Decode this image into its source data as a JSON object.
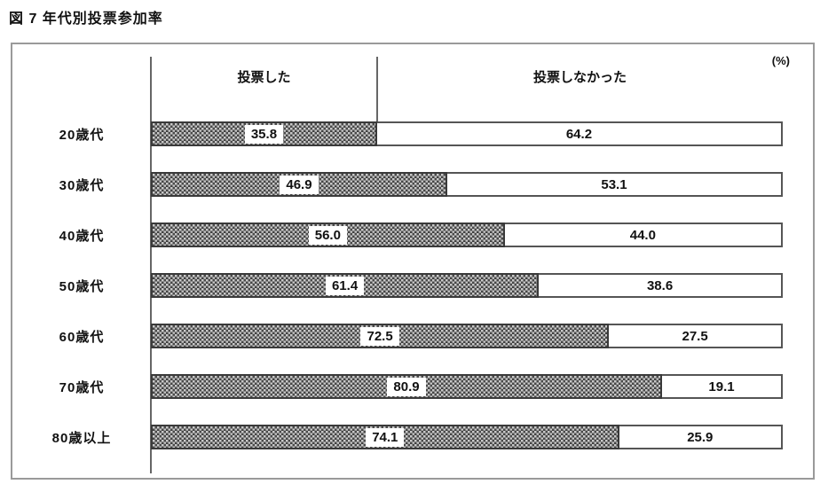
{
  "page": {
    "title": "図 7 年代別投票参加率"
  },
  "header": {
    "voted_label": "投票した",
    "not_voted_label": "投票しなかった",
    "unit": "(%)"
  },
  "chart_data": {
    "type": "bar",
    "orientation": "horizontal",
    "stacked": true,
    "title": "図 7 年代別投票参加率",
    "xlabel": "",
    "ylabel": "",
    "unit": "(%)",
    "xlim": [
      0,
      100
    ],
    "grid": false,
    "legend_position": "top-header",
    "categories": [
      "20歳代",
      "30歳代",
      "40歳代",
      "50歳代",
      "60歳代",
      "70歳代",
      "80歳以上"
    ],
    "series": [
      {
        "name": "投票した",
        "values": [
          35.8,
          46.9,
          56.0,
          61.4,
          72.5,
          80.9,
          74.1
        ]
      },
      {
        "name": "投票しなかった",
        "values": [
          64.2,
          53.1,
          44.0,
          38.6,
          27.5,
          19.1,
          25.9
        ]
      }
    ],
    "rows": [
      {
        "label": "20歳代",
        "voted": "35.8",
        "not_voted": "64.2"
      },
      {
        "label": "30歳代",
        "voted": "46.9",
        "not_voted": "53.1"
      },
      {
        "label": "40歳代",
        "voted": "56.0",
        "not_voted": "44.0"
      },
      {
        "label": "50歳代",
        "voted": "61.4",
        "not_voted": "38.6"
      },
      {
        "label": "60歳代",
        "voted": "72.5",
        "not_voted": "27.5"
      },
      {
        "label": "70歳代",
        "voted": "80.9",
        "not_voted": "19.1"
      },
      {
        "label": "80歳以上",
        "voted": "74.1",
        "not_voted": "25.9"
      }
    ]
  }
}
